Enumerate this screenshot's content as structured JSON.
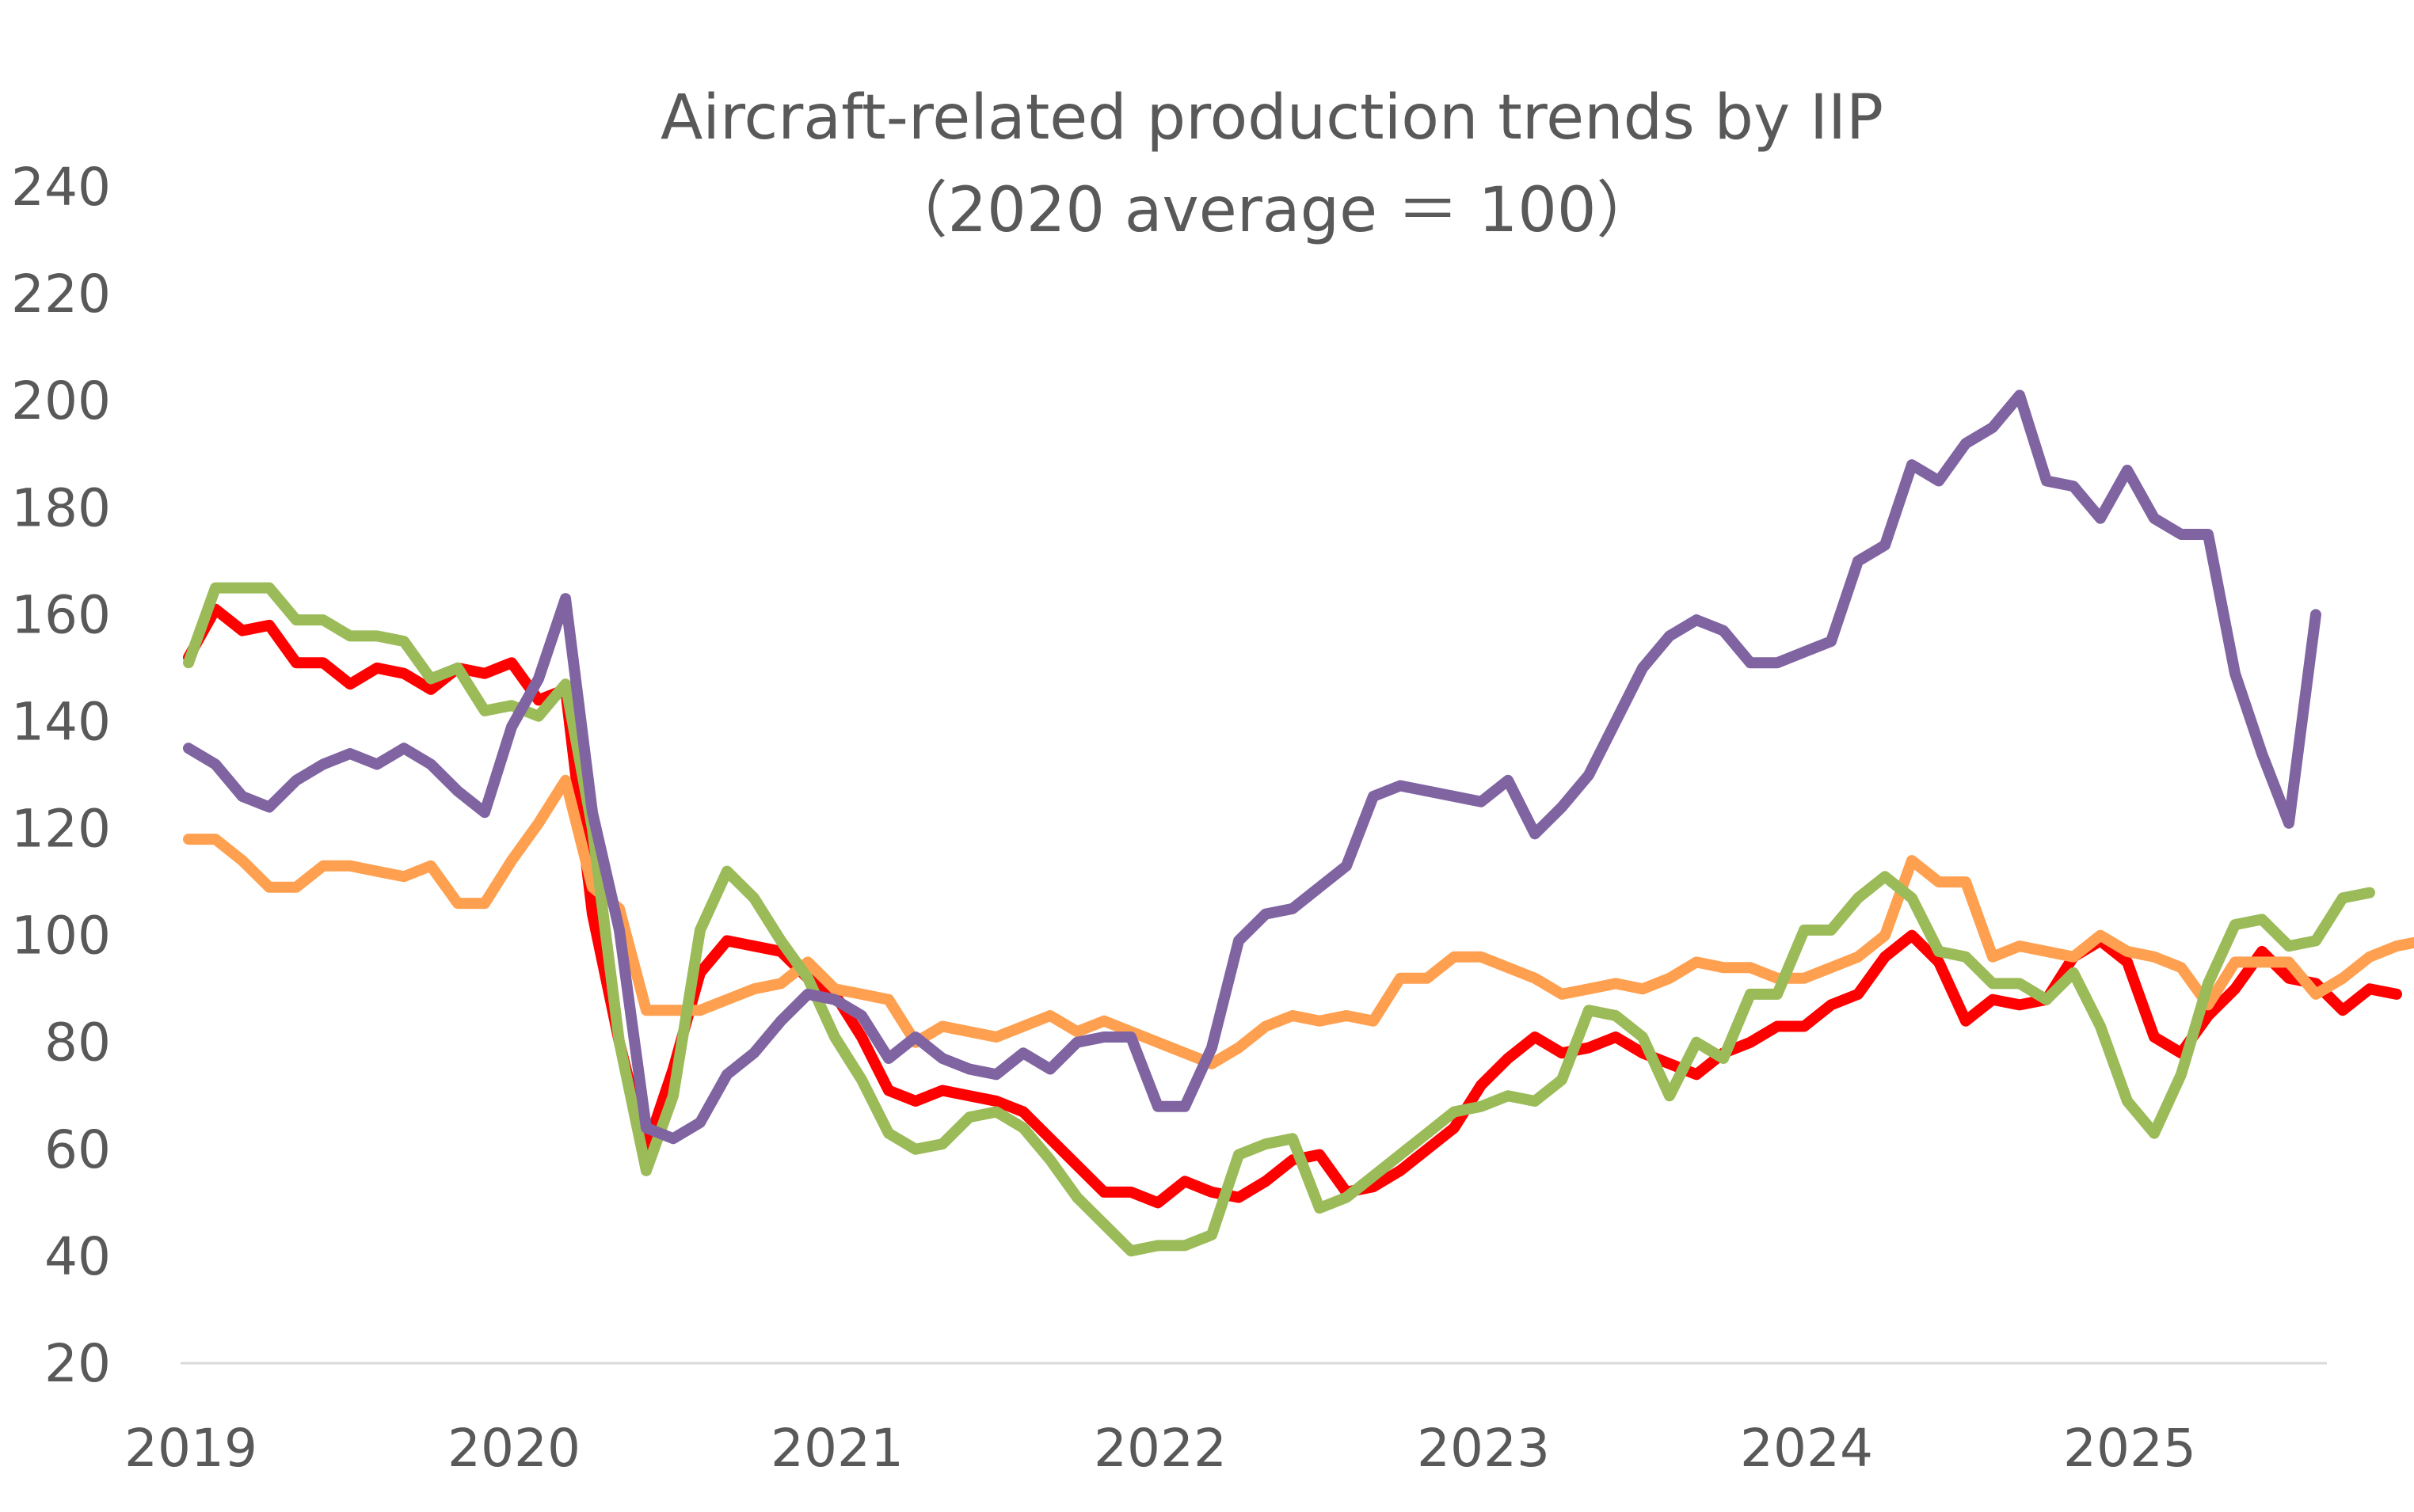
{
  "chart_data": {
    "type": "line",
    "title": "Aircraft-related production trends by IIP",
    "subtitle": "（2020 average ＝ 100）",
    "xlabel": "",
    "ylabel": "",
    "ylim": [
      20,
      240
    ],
    "yticks": [
      "240",
      "220",
      "200",
      "180",
      "160",
      "140",
      "120",
      "100",
      "80",
      "60",
      "40",
      "20"
    ],
    "xticks": [
      "2019",
      "2020",
      "2021",
      "2022",
      "2023",
      "2024",
      "2025"
    ],
    "x_start": "2019-01",
    "grid": false,
    "legend": "none",
    "series": [
      {
        "color": "#FF0000",
        "values": [
          152,
          161,
          157,
          158,
          151,
          151,
          147,
          150,
          149,
          146,
          150,
          149,
          151,
          144,
          146,
          104,
          80,
          60,
          75,
          93,
          99,
          98,
          97,
          92,
          89,
          81,
          71,
          69,
          71,
          70,
          69,
          67,
          62,
          57,
          52,
          52,
          50,
          54,
          52,
          51,
          54,
          58,
          59,
          52,
          53,
          56,
          60,
          64,
          72,
          77,
          81,
          78,
          79,
          81,
          78,
          76,
          74,
          78,
          80,
          83,
          83,
          87,
          89,
          96,
          100,
          95,
          84,
          88,
          87,
          88,
          96,
          99,
          95,
          81,
          78,
          85,
          90,
          97,
          92,
          91,
          86,
          90,
          89
        ]
      },
      {
        "color": "#FFA050",
        "values": [
          118,
          118,
          114,
          109,
          109,
          113,
          113,
          112,
          111,
          113,
          106,
          106,
          114,
          121,
          129,
          109,
          105,
          86,
          86,
          86,
          88,
          90,
          91,
          95,
          90,
          89,
          88,
          80,
          83,
          82,
          81,
          83,
          85,
          82,
          84,
          82,
          80,
          78,
          76,
          79,
          83,
          85,
          84,
          85,
          84,
          92,
          92,
          96,
          96,
          94,
          92,
          89,
          90,
          91,
          90,
          92,
          95,
          94,
          94,
          92,
          92,
          94,
          96,
          100,
          114,
          110,
          110,
          96,
          98,
          97,
          96,
          100,
          97,
          96,
          94,
          87,
          95,
          95,
          95,
          89,
          92,
          96,
          98,
          99,
          100
        ]
      },
      {
        "color": "#9BBB59",
        "values": [
          151,
          165,
          165,
          165,
          159,
          159,
          156,
          156,
          155,
          148,
          150,
          142,
          143,
          141,
          147,
          120,
          80,
          56,
          70,
          101,
          112,
          107,
          99,
          92,
          81,
          73,
          63,
          60,
          61,
          66,
          67,
          64,
          58,
          51,
          46,
          41,
          42,
          42,
          44,
          59,
          61,
          62,
          49,
          51,
          55,
          59,
          63,
          67,
          68,
          70,
          69,
          73,
          86,
          85,
          81,
          70,
          80,
          77,
          89,
          89,
          101,
          101,
          107,
          111,
          107,
          97,
          96,
          91,
          91,
          88,
          93,
          83,
          69,
          63,
          74,
          91,
          102,
          103,
          98,
          99,
          107,
          108
        ]
      },
      {
        "color": "#8064A2",
        "values": [
          135,
          132,
          126,
          124,
          129,
          132,
          134,
          132,
          135,
          132,
          127,
          123,
          139,
          148,
          163,
          123,
          101,
          64,
          62,
          65,
          74,
          78,
          84,
          89,
          88,
          85,
          77,
          81,
          77,
          75,
          74,
          78,
          75,
          80,
          81,
          81,
          68,
          68,
          79,
          99,
          104,
          105,
          109,
          113,
          126,
          128,
          127,
          126,
          125,
          129,
          119,
          124,
          130,
          140,
          150,
          156,
          159,
          157,
          151,
          151,
          153,
          155,
          170,
          173,
          188,
          185,
          192,
          195,
          201,
          185,
          184,
          178,
          187,
          178,
          175,
          175,
          149,
          134,
          121,
          160
        ]
      }
    ]
  }
}
